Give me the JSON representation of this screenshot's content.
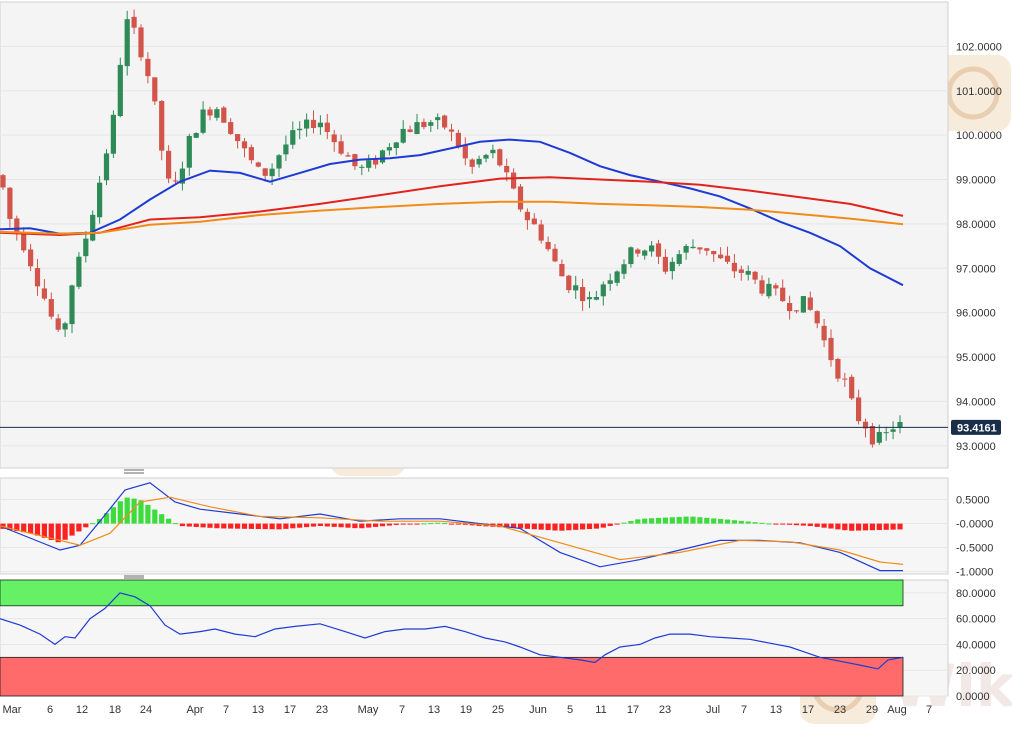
{
  "chart_data": {
    "type": "candlestick",
    "watermark": "WikiFX",
    "price_panel": {
      "yticks": [
        "102.0000",
        "101.0000",
        "100.0000",
        "99.0000",
        "98.0000",
        "97.0000",
        "96.0000",
        "95.0000",
        "94.0000",
        "93.0000"
      ],
      "ylim": [
        92.5,
        103.0
      ],
      "last_price": "93.4161",
      "moving_averages": [
        {
          "color": "#1f3bd6",
          "points": [
            [
              0,
              97.88
            ],
            [
              30,
              97.9
            ],
            [
              60,
              97.78
            ],
            [
              90,
              97.8
            ],
            [
              120,
              98.1
            ],
            [
              150,
              98.55
            ],
            [
              180,
              98.95
            ],
            [
              210,
              99.2
            ],
            [
              240,
              99.15
            ],
            [
              270,
              98.95
            ],
            [
              300,
              99.15
            ],
            [
              330,
              99.35
            ],
            [
              360,
              99.45
            ],
            [
              390,
              99.48
            ],
            [
              420,
              99.55
            ],
            [
              450,
              99.7
            ],
            [
              480,
              99.85
            ],
            [
              510,
              99.9
            ],
            [
              540,
              99.85
            ],
            [
              570,
              99.6
            ],
            [
              600,
              99.3
            ],
            [
              630,
              99.1
            ],
            [
              660,
              98.95
            ],
            [
              690,
              98.8
            ],
            [
              720,
              98.62
            ],
            [
              750,
              98.35
            ],
            [
              780,
              98.05
            ],
            [
              810,
              97.8
            ],
            [
              840,
              97.5
            ],
            [
              870,
              97.0
            ],
            [
              903,
              96.62
            ]
          ]
        },
        {
          "color": "#e3231b",
          "points": [
            [
              0,
              97.8
            ],
            [
              60,
              97.75
            ],
            [
              100,
              97.8
            ],
            [
              150,
              98.1
            ],
            [
              200,
              98.15
            ],
            [
              260,
              98.28
            ],
            [
              320,
              98.45
            ],
            [
              380,
              98.65
            ],
            [
              440,
              98.85
            ],
            [
              500,
              99.02
            ],
            [
              550,
              99.05
            ],
            [
              600,
              99.0
            ],
            [
              650,
              98.95
            ],
            [
              700,
              98.88
            ],
            [
              750,
              98.75
            ],
            [
              800,
              98.6
            ],
            [
              850,
              98.45
            ],
            [
              903,
              98.18
            ]
          ]
        },
        {
          "color": "#f08c1a",
          "points": [
            [
              0,
              97.82
            ],
            [
              60,
              97.78
            ],
            [
              100,
              97.8
            ],
            [
              150,
              97.98
            ],
            [
              200,
              98.05
            ],
            [
              260,
              98.2
            ],
            [
              320,
              98.3
            ],
            [
              380,
              98.38
            ],
            [
              440,
              98.45
            ],
            [
              500,
              98.5
            ],
            [
              550,
              98.5
            ],
            [
              600,
              98.45
            ],
            [
              650,
              98.42
            ],
            [
              700,
              98.38
            ],
            [
              750,
              98.32
            ],
            [
              800,
              98.22
            ],
            [
              850,
              98.12
            ],
            [
              903,
              97.99
            ]
          ]
        }
      ]
    },
    "macd_panel": {
      "yticks": [
        "0.5000",
        "-0.0000",
        "-0.5000",
        "-1.0000"
      ],
      "ylim": [
        -1.05,
        0.95
      ]
    },
    "rsi_panel": {
      "yticks": [
        "80.0000",
        "60.0000",
        "40.0000",
        "20.0000",
        "0.0000"
      ],
      "ylim": [
        0,
        90
      ],
      "overbought": 70,
      "oversold": 30,
      "line_color": "#1f3bd6"
    },
    "x_labels": [
      "Mar",
      "6",
      "12",
      "18",
      "24",
      "Apr",
      "7",
      "13",
      "17",
      "23",
      "May",
      "7",
      "13",
      "19",
      "25",
      "Jun",
      "5",
      "11",
      "17",
      "23",
      "Jul",
      "7",
      "13",
      "17",
      "23",
      "29",
      "Aug",
      "7"
    ],
    "colors": {
      "up": "#2e8b57",
      "down": "#d2544a",
      "histo_up": "#3cdc3c",
      "histo_down": "#ff2020",
      "grid": "#e6e6e6"
    }
  }
}
